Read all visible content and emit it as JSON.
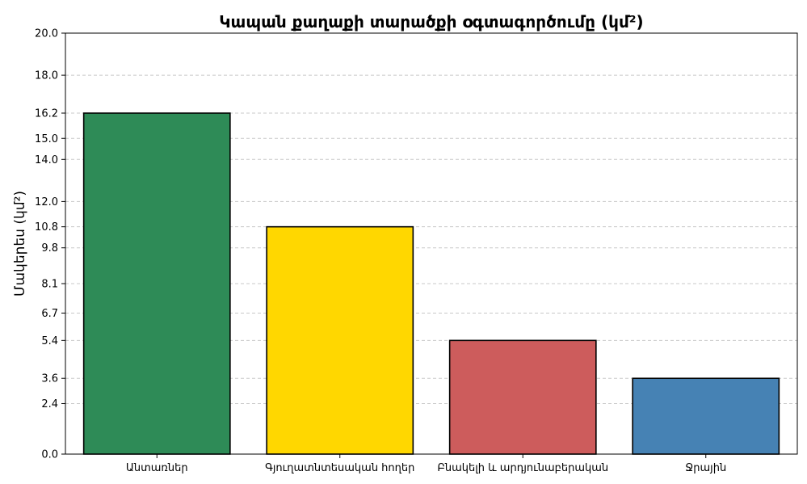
{
  "chart_data": {
    "type": "bar",
    "title": "Կապան քաղաքի տարածքի օգտագործումը (կմ²)",
    "xlabel": "",
    "ylabel": "Մակերես (կմ²)",
    "categories": [
      "Անտառներ",
      "Գյուղատնտեսական հողեր",
      "Բնակելի և արդյունաբերական",
      "Ջրային"
    ],
    "values": [
      16.2,
      10.8,
      5.4,
      3.6
    ],
    "colors": [
      "#2e8b57",
      "#ffd700",
      "#cd5c5c",
      "#4682b4"
    ],
    "ylim": [
      0,
      20
    ],
    "yticks": [
      0.0,
      2.4,
      3.6,
      5.4,
      6.7,
      8.1,
      9.8,
      10.8,
      12.0,
      14.0,
      15.0,
      16.2,
      18.0,
      20.0
    ],
    "grid": true,
    "legend": false
  }
}
